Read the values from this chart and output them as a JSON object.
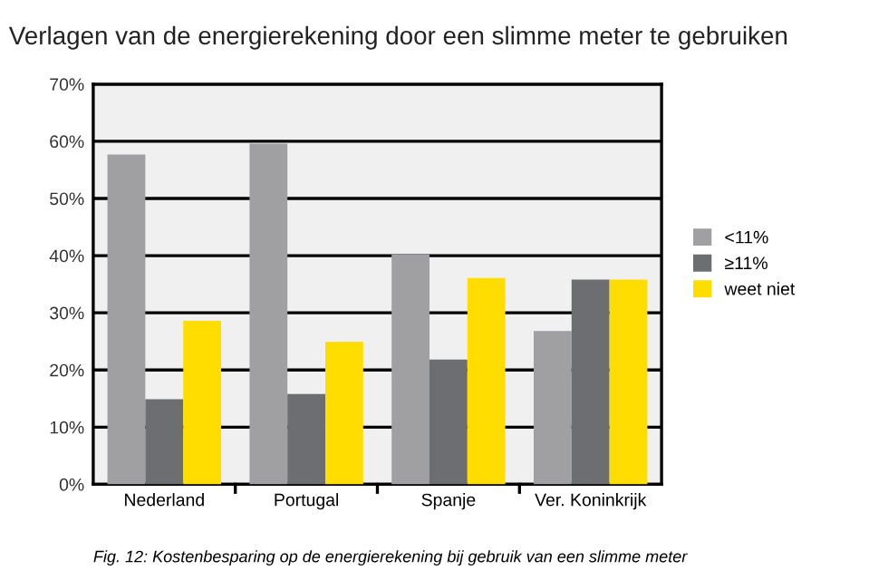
{
  "chart_data": {
    "type": "bar",
    "title": "Verlagen van de energierekening door een slimme meter te gebruiken",
    "categories": [
      "Nederland",
      "Portugal",
      "Spanje",
      "Ver. Koninkrijk"
    ],
    "series": [
      {
        "name": "<11%",
        "color": "#a0a0a3",
        "values": [
          57.7,
          59.6,
          40.2,
          26.8
        ]
      },
      {
        "name": "≥11%",
        "color": "#6d6e71",
        "values": [
          14.9,
          15.8,
          21.8,
          35.8
        ]
      },
      {
        "name": "weet niet",
        "color": "#ffdd00",
        "values": [
          28.6,
          24.9,
          36.1,
          35.8
        ]
      }
    ],
    "ylim": [
      0,
      70
    ],
    "yticks": [
      {
        "value": 0,
        "label": "0%"
      },
      {
        "value": 10,
        "label": "10%"
      },
      {
        "value": 20,
        "label": "20%"
      },
      {
        "value": 30,
        "label": "30%"
      },
      {
        "value": 40,
        "label": "40%"
      },
      {
        "value": 50,
        "label": "50%"
      },
      {
        "value": 60,
        "label": "60%"
      },
      {
        "value": 70,
        "label": "70%"
      }
    ],
    "grid": "y",
    "legend": "right",
    "annotations": [
      "Fig. 12: Kostenbesparing op de energierekening bij gebruik van een slimme meter"
    ]
  }
}
